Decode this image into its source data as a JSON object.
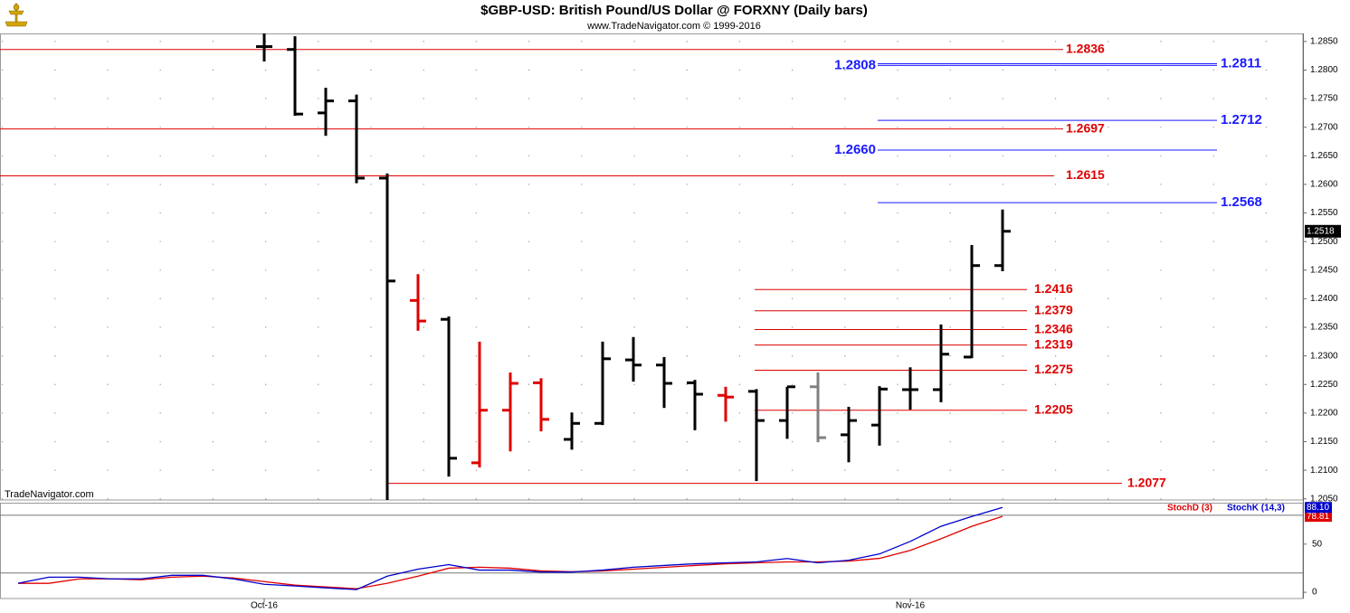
{
  "chart_data": [
    {
      "type": "ohlc",
      "title": "$GBP-USD:  British Pound/US Dollar @ FORXNY  (Daily bars)",
      "subtitle": "www.TradeNavigator.com © 1999-2016",
      "watermark": "TradeNavigator.com",
      "open": [
        null,
        null,
        null,
        null,
        null,
        null,
        null,
        null,
        1.2841,
        1.2836,
        1.2725,
        1.2746,
        1.2611,
        1.2397,
        1.2364,
        1.2113,
        1.2205,
        1.2253,
        1.2154,
        1.2182,
        1.2293,
        1.2284,
        1.2253,
        1.2231,
        1.2238,
        1.2187,
        1.2246,
        1.2162,
        1.2179,
        1.2241,
        1.2241,
        1.2298,
        1.2458
      ],
      "high": [
        null,
        null,
        null,
        null,
        null,
        null,
        null,
        null,
        1.287,
        1.2859,
        1.2769,
        1.2757,
        1.2619,
        1.2443,
        1.2369,
        1.2325,
        1.2271,
        1.2261,
        1.2201,
        1.2325,
        1.2333,
        1.2298,
        1.2258,
        1.2246,
        1.2242,
        1.2246,
        1.2271,
        1.2211,
        1.2247,
        1.228,
        1.2355,
        1.2494,
        1.2556
      ],
      "low": [
        null,
        null,
        null,
        null,
        null,
        null,
        null,
        null,
        1.2815,
        1.272,
        1.2685,
        1.2602,
        1.2046,
        1.2344,
        1.2089,
        1.2105,
        1.2133,
        1.2168,
        1.2136,
        1.2179,
        1.2255,
        1.2209,
        1.217,
        1.2185,
        1.2081,
        1.2155,
        1.2149,
        1.2114,
        1.2143,
        1.2206,
        1.2219,
        1.2296,
        1.2448
      ],
      "close": [
        null,
        null,
        null,
        null,
        null,
        null,
        null,
        null,
        1.2841,
        1.2723,
        1.2746,
        1.2611,
        1.2431,
        1.2361,
        1.2121,
        1.2205,
        1.2252,
        1.2189,
        1.2182,
        1.2295,
        1.2284,
        1.2252,
        1.2233,
        1.2228,
        1.2187,
        1.2246,
        1.2157,
        1.2187,
        1.2242,
        1.2241,
        1.2303,
        1.2458,
        1.2518
      ],
      "bar_colors": [
        null,
        null,
        null,
        null,
        null,
        null,
        null,
        null,
        "#000000",
        "#000000",
        "#000000",
        "#000000",
        "#000000",
        "#e00000",
        "#000000",
        "#e00000",
        "#e00000",
        "#e00000",
        "#000000",
        "#000000",
        "#000000",
        "#000000",
        "#000000",
        "#e00000",
        "#000000",
        "#000000",
        "#808080",
        "#000000",
        "#000000",
        "#000000",
        "#000000",
        "#000000",
        "#000000"
      ],
      "ylim": [
        1.2048,
        1.2864
      ],
      "yticks": [
        {
          "value": 1.205,
          "label": "1.2050"
        },
        {
          "value": 1.21,
          "label": "1.2100"
        },
        {
          "value": 1.215,
          "label": "1.2150"
        },
        {
          "value": 1.22,
          "label": "1.2200"
        },
        {
          "value": 1.225,
          "label": "1.2250"
        },
        {
          "value": 1.23,
          "label": "1.2300"
        },
        {
          "value": 1.235,
          "label": "1.2350"
        },
        {
          "value": 1.24,
          "label": "1.2400"
        },
        {
          "value": 1.245,
          "label": "1.2450"
        },
        {
          "value": 1.25,
          "label": "1.2500"
        },
        {
          "value": 1.255,
          "label": "1.2550"
        },
        {
          "value": 1.26,
          "label": "1.2600"
        },
        {
          "value": 1.265,
          "label": "1.2650"
        },
        {
          "value": 1.27,
          "label": "1.2700"
        },
        {
          "value": 1.275,
          "label": "1.2750"
        },
        {
          "value": 1.28,
          "label": "1.2800"
        },
        {
          "value": 1.285,
          "label": "1.2850"
        }
      ],
      "grid": true,
      "levels": [
        {
          "value": 1.2836,
          "label": "1.2836",
          "color": "#e00000"
        },
        {
          "value": 1.2808,
          "label": "1.2808",
          "color": "#1a1aff"
        },
        {
          "value": 1.2811,
          "label": "1.2811",
          "color": "#1a1aff"
        },
        {
          "value": 1.2712,
          "label": "1.2712",
          "color": "#1a1aff"
        },
        {
          "value": 1.2697,
          "label": "1.2697",
          "color": "#e00000"
        },
        {
          "value": 1.266,
          "label": "1.2660",
          "color": "#1a1aff"
        },
        {
          "value": 1.2615,
          "label": "1.2615",
          "color": "#e00000"
        },
        {
          "value": 1.2568,
          "label": "1.2568",
          "color": "#1a1aff"
        },
        {
          "value": 1.2416,
          "label": "1.2416",
          "color": "#e00000"
        },
        {
          "value": 1.2379,
          "label": "1.2379",
          "color": "#e00000"
        },
        {
          "value": 1.2346,
          "label": "1.2346",
          "color": "#e00000"
        },
        {
          "value": 1.2319,
          "label": "1.2319",
          "color": "#e00000"
        },
        {
          "value": 1.2275,
          "label": "1.2275",
          "color": "#e00000"
        },
        {
          "value": 1.2205,
          "label": "1.2205",
          "color": "#e00000"
        },
        {
          "value": 1.2077,
          "label": "1.2077",
          "color": "#e00000"
        }
      ]
    },
    {
      "type": "line",
      "categories": [
        null,
        null,
        null,
        null,
        null,
        null,
        null,
        null,
        "Oct-16",
        null,
        null,
        null,
        null,
        null,
        null,
        null,
        null,
        null,
        null,
        null,
        null,
        null,
        null,
        null,
        null,
        null,
        null,
        null,
        null,
        "Nov-16",
        null,
        null,
        null
      ],
      "series": [
        {
          "name": "StochD (3)",
          "color": "#e00000",
          "last_label": "78.81",
          "values": [
            9.3,
            9.3,
            13.9,
            13.9,
            13,
            15.7,
            16.7,
            14.8,
            11.1,
            7.4,
            5.6,
            3.7,
            9.3,
            16.7,
            25,
            26,
            25,
            22.2,
            21.3,
            22.2,
            24,
            25.9,
            27.8,
            29.6,
            30.6,
            31.5,
            31.5,
            32.4,
            35.2,
            43.5,
            55.6,
            68.5,
            78.81
          ]
        },
        {
          "name": "StochK (14,3)",
          "color": "#0000cc",
          "last_label": "88.10",
          "values": [
            9.3,
            15.7,
            15.7,
            13.9,
            13.9,
            17.6,
            17.6,
            13.9,
            8.3,
            6.5,
            4.6,
            2.8,
            16.7,
            24,
            28.7,
            23,
            23,
            21,
            21,
            23,
            26,
            27.8,
            29.6,
            30.6,
            31.5,
            35,
            30.6,
            33.3,
            39.8,
            52.8,
            68.5,
            78.7,
            88.1
          ]
        }
      ],
      "ylim": [
        -6.5,
        93
      ],
      "yticks": [
        0,
        50
      ],
      "levels": [
        20,
        80
      ]
    }
  ]
}
